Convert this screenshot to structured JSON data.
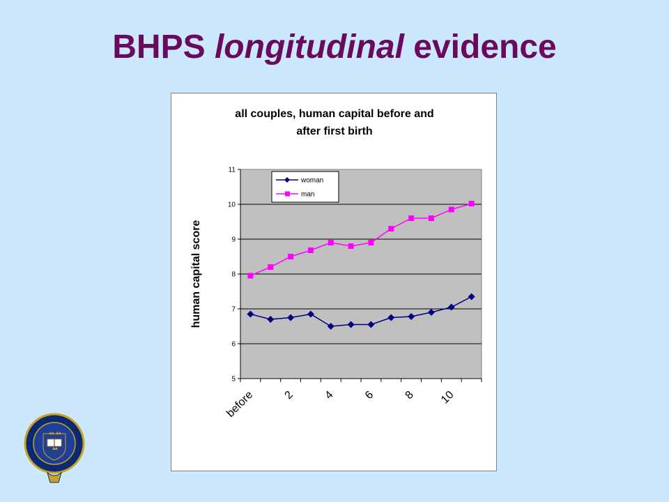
{
  "slide": {
    "title_plain": "BHPS",
    "title_italic": "longitudinal",
    "title_end": "evidence"
  },
  "chart_data": {
    "type": "line",
    "title_line1": "all couples, human capital before and",
    "title_line2": "after first birth",
    "ylabel": "human capital score",
    "xlabel": "",
    "ylim": [
      5,
      11
    ],
    "yticks": [
      "5",
      "6",
      "7",
      "8",
      "9",
      "10",
      "11"
    ],
    "x": [
      1,
      2,
      3,
      4,
      5,
      6,
      7,
      8,
      9,
      10,
      11,
      12
    ],
    "xtick_labels": [
      {
        "x": 1,
        "label": "before"
      },
      {
        "x": 3,
        "label": "2"
      },
      {
        "x": 5,
        "label": "4"
      },
      {
        "x": 7,
        "label": "6"
      },
      {
        "x": 9,
        "label": "8"
      },
      {
        "x": 11,
        "label": "10"
      }
    ],
    "grid": true,
    "legend_position": "top-left",
    "series": [
      {
        "name": "woman",
        "color": "#000080",
        "marker": "diamond",
        "values": [
          6.85,
          6.7,
          6.75,
          6.85,
          6.5,
          6.55,
          6.55,
          6.75,
          6.78,
          6.9,
          7.05,
          7.35
        ]
      },
      {
        "name": "man",
        "color": "#ff00ff",
        "marker": "square",
        "values": [
          7.95,
          8.2,
          8.5,
          8.68,
          8.9,
          8.8,
          8.9,
          9.3,
          9.6,
          9.6,
          9.85,
          10.02
        ]
      }
    ]
  },
  "logo": {
    "ring_text": "UNIVERSITY · OF · OXFORD",
    "book_text": "DOMINUS ILLUMINATIO MEA"
  }
}
